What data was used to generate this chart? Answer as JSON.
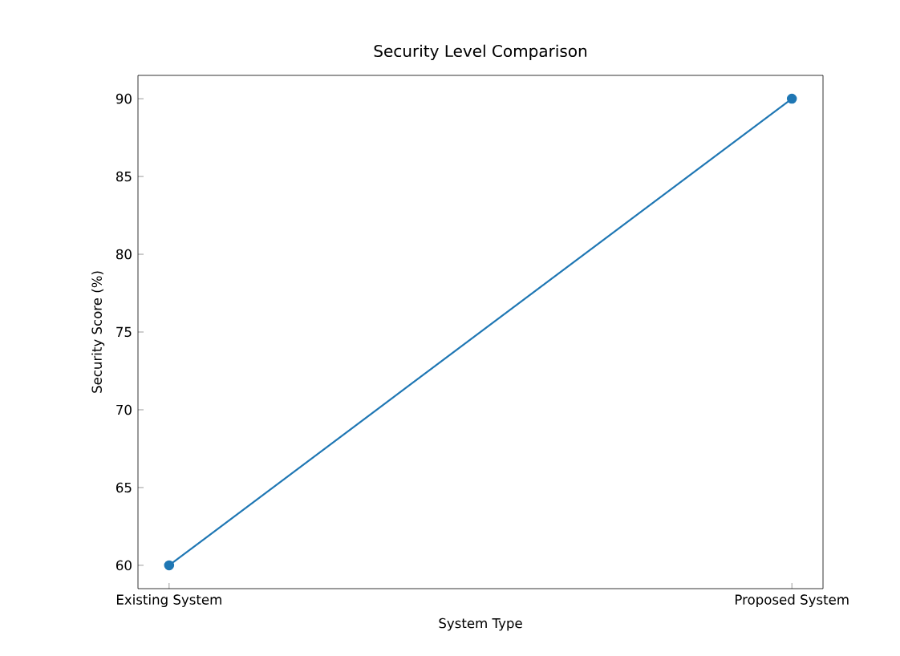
{
  "chart_data": {
    "type": "line",
    "title": "Security Level Comparison",
    "xlabel": "System Type",
    "ylabel": "Security Score (%)",
    "categories": [
      "Existing System",
      "Proposed System"
    ],
    "series": [
      {
        "color": "#1f77b4",
        "values": [
          60,
          90
        ]
      }
    ],
    "ylim": [
      58.5,
      91.5
    ],
    "yticks": [
      60,
      65,
      70,
      75,
      80,
      85,
      90
    ],
    "marker": "circle",
    "line_style": "solid",
    "grid": false
  }
}
